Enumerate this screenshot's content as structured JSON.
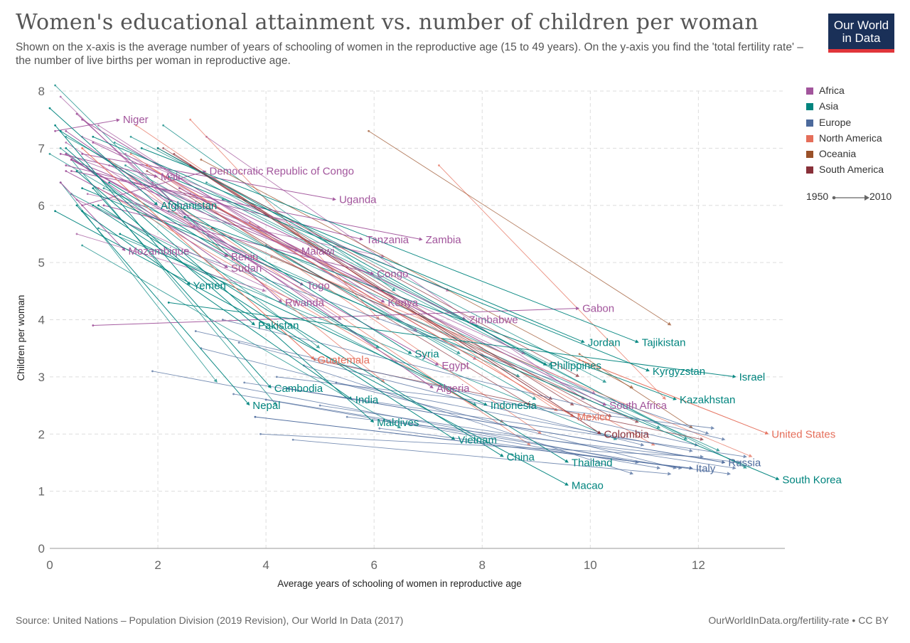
{
  "header": {
    "title": "Women's educational attainment vs. number of children per woman",
    "subtitle": "Shown on the x-axis is the average number of years of schooling of women in the reproductive age (15 to 49 years). On the y-axis you find the 'total fertility rate' – the number of live births per woman in reproductive age.",
    "logo_line1": "Our World",
    "logo_line2": "in Data"
  },
  "legend": {
    "items": [
      {
        "label": "Africa",
        "color": "#a2559c"
      },
      {
        "label": "Asia",
        "color": "#00847e"
      },
      {
        "label": "Europe",
        "color": "#4c6a9c"
      },
      {
        "label": "North America",
        "color": "#e56e5a"
      },
      {
        "label": "Oceania",
        "color": "#9a5129"
      },
      {
        "label": "South America",
        "color": "#883039"
      }
    ],
    "timeline_start": "1950",
    "timeline_end": "2010"
  },
  "footer": {
    "source": "Source: United Nations – Population Division (2019 Revision), Our World In Data (2017)",
    "url": "OurWorldInData.org/fertility-rate • CC BY"
  },
  "chart_data": {
    "type": "scatter",
    "title": "Women's educational attainment vs. number of children per woman",
    "xlabel": "Average years of schooling of women in reproductive age",
    "ylabel": "Children per woman",
    "xlim": [
      0,
      13.6
    ],
    "ylim": [
      0,
      8
    ],
    "xticks": [
      "0",
      "2",
      "4",
      "6",
      "8",
      "10",
      "12"
    ],
    "yticks": [
      "0",
      "1",
      "2",
      "3",
      "4",
      "5",
      "6",
      "7",
      "8"
    ],
    "grid": true,
    "legend_position": "right",
    "series": [
      {
        "name": "Niger",
        "region": "Africa",
        "x0": 0.1,
        "y0": 7.3,
        "x1": 1.3,
        "y1": 7.5
      },
      {
        "name": "Mali",
        "region": "Africa",
        "x0": 0.2,
        "y0": 6.9,
        "x1": 2.0,
        "y1": 6.5
      },
      {
        "name": "Democratic Republic of Congo",
        "region": "Africa",
        "x0": 0.6,
        "y0": 6.0,
        "x1": 2.9,
        "y1": 6.6
      },
      {
        "name": "Uganda",
        "region": "Africa",
        "x0": 0.6,
        "y0": 6.9,
        "x1": 5.3,
        "y1": 6.1
      },
      {
        "name": "Tanzania",
        "region": "Africa",
        "x0": 0.3,
        "y0": 6.7,
        "x1": 5.8,
        "y1": 5.4
      },
      {
        "name": "Zambia",
        "region": "Africa",
        "x0": 0.4,
        "y0": 6.6,
        "x1": 6.9,
        "y1": 5.4
      },
      {
        "name": "Mozambique",
        "region": "Africa",
        "x0": 0.2,
        "y0": 6.4,
        "x1": 1.4,
        "y1": 5.2
      },
      {
        "name": "Benin",
        "region": "Africa",
        "x0": 0.3,
        "y0": 6.6,
        "x1": 3.3,
        "y1": 5.1
      },
      {
        "name": "Malawi",
        "region": "Africa",
        "x0": 0.4,
        "y0": 6.8,
        "x1": 4.6,
        "y1": 5.2
      },
      {
        "name": "Sudan",
        "region": "Africa",
        "x0": 0.3,
        "y0": 6.9,
        "x1": 3.3,
        "y1": 4.9
      },
      {
        "name": "Togo",
        "region": "Africa",
        "x0": 0.4,
        "y0": 6.8,
        "x1": 4.7,
        "y1": 4.6
      },
      {
        "name": "Rwanda",
        "region": "Africa",
        "x0": 0.5,
        "y0": 7.6,
        "x1": 4.3,
        "y1": 4.3
      },
      {
        "name": "Congo",
        "region": "Africa",
        "x0": 1.0,
        "y0": 6.0,
        "x1": 6.0,
        "y1": 4.8
      },
      {
        "name": "Kenya",
        "region": "Africa",
        "x0": 0.6,
        "y0": 7.5,
        "x1": 6.2,
        "y1": 4.3
      },
      {
        "name": "Gabon",
        "region": "Africa",
        "x0": 0.8,
        "y0": 3.9,
        "x1": 9.8,
        "y1": 4.2
      },
      {
        "name": "Zimbabwe",
        "region": "Africa",
        "x0": 0.8,
        "y0": 7.1,
        "x1": 7.7,
        "y1": 4.0
      },
      {
        "name": "Egypt",
        "region": "Africa",
        "x0": 0.4,
        "y0": 6.8,
        "x1": 7.2,
        "y1": 3.2
      },
      {
        "name": "Algeria",
        "region": "Africa",
        "x0": 0.3,
        "y0": 7.3,
        "x1": 7.1,
        "y1": 2.8
      },
      {
        "name": "South Africa",
        "region": "Africa",
        "x0": 2.4,
        "y0": 6.3,
        "x1": 10.3,
        "y1": 2.5
      },
      {
        "name": "Afghanistan",
        "region": "Asia",
        "x0": 0.0,
        "y0": 7.7,
        "x1": 2.0,
        "y1": 6.0
      },
      {
        "name": "Yemen",
        "region": "Asia",
        "x0": 0.1,
        "y0": 7.4,
        "x1": 2.6,
        "y1": 4.6
      },
      {
        "name": "Pakistan",
        "region": "Asia",
        "x0": 0.5,
        "y0": 6.6,
        "x1": 3.8,
        "y1": 3.9
      },
      {
        "name": "Cambodia",
        "region": "Asia",
        "x0": 0.8,
        "y0": 6.3,
        "x1": 4.1,
        "y1": 2.8
      },
      {
        "name": "Nepal",
        "region": "Asia",
        "x0": 0.5,
        "y0": 6.0,
        "x1": 3.7,
        "y1": 2.5
      },
      {
        "name": "India",
        "region": "Asia",
        "x0": 0.6,
        "y0": 5.9,
        "x1": 5.6,
        "y1": 2.6
      },
      {
        "name": "Maldives",
        "region": "Asia",
        "x0": 0.3,
        "y0": 7.0,
        "x1": 6.0,
        "y1": 2.2
      },
      {
        "name": "Syria",
        "region": "Asia",
        "x0": 0.2,
        "y0": 7.3,
        "x1": 6.7,
        "y1": 3.4
      },
      {
        "name": "Vietnam",
        "region": "Asia",
        "x0": 0.8,
        "y0": 6.0,
        "x1": 7.5,
        "y1": 1.9
      },
      {
        "name": "Indonesia",
        "region": "Asia",
        "x0": 1.3,
        "y0": 5.5,
        "x1": 8.1,
        "y1": 2.5
      },
      {
        "name": "China",
        "region": "Asia",
        "x0": 0.9,
        "y0": 6.0,
        "x1": 8.4,
        "y1": 1.6
      },
      {
        "name": "Philippines",
        "region": "Asia",
        "x0": 2.0,
        "y0": 7.0,
        "x1": 9.2,
        "y1": 3.2
      },
      {
        "name": "Jordan",
        "region": "Asia",
        "x0": 0.8,
        "y0": 7.2,
        "x1": 9.9,
        "y1": 3.6
      },
      {
        "name": "Tajikistan",
        "region": "Asia",
        "x0": 1.7,
        "y0": 7.0,
        "x1": 10.9,
        "y1": 3.6
      },
      {
        "name": "Kyrgyzstan",
        "region": "Asia",
        "x0": 2.2,
        "y0": 6.5,
        "x1": 11.1,
        "y1": 3.1
      },
      {
        "name": "Kazakhstan",
        "region": "Asia",
        "x0": 2.5,
        "y0": 5.8,
        "x1": 11.6,
        "y1": 2.6
      },
      {
        "name": "Israel",
        "region": "Asia",
        "x0": 2.2,
        "y0": 4.3,
        "x1": 12.7,
        "y1": 3.0
      },
      {
        "name": "Thailand",
        "region": "Asia",
        "x0": 1.1,
        "y0": 6.4,
        "x1": 9.6,
        "y1": 1.5
      },
      {
        "name": "Macao",
        "region": "Asia",
        "x0": 0.1,
        "y0": 5.9,
        "x1": 9.6,
        "y1": 1.1
      },
      {
        "name": "South Korea",
        "region": "Asia",
        "x0": 0.6,
        "y0": 6.3,
        "x1": 13.5,
        "y1": 1.2
      },
      {
        "name": "Guatemala",
        "region": "North America",
        "x0": 0.6,
        "y0": 7.0,
        "x1": 4.9,
        "y1": 3.3
      },
      {
        "name": "Mexico",
        "region": "North America",
        "x0": 1.8,
        "y0": 6.7,
        "x1": 9.7,
        "y1": 2.3
      },
      {
        "name": "United States",
        "region": "North America",
        "x0": 9.8,
        "y0": 3.3,
        "x1": 13.3,
        "y1": 2.0
      },
      {
        "name": "Colombia",
        "region": "South America",
        "x0": 2.6,
        "y0": 6.7,
        "x1": 10.2,
        "y1": 2.0
      },
      {
        "name": "Russia",
        "region": "Europe",
        "x0": 4.4,
        "y0": 2.8,
        "x1": 12.5,
        "y1": 1.5
      },
      {
        "name": "Italy",
        "region": "Europe",
        "x0": 3.8,
        "y0": 2.3,
        "x1": 11.9,
        "y1": 1.4
      }
    ],
    "background_lines": [
      {
        "region": "Asia",
        "x0": 0.1,
        "y0": 8.1,
        "x1": 3.3,
        "y1": 5.1
      },
      {
        "region": "Asia",
        "x0": 2.1,
        "y0": 7.4,
        "x1": 6.4,
        "y1": 4.5
      },
      {
        "region": "Asia",
        "x0": 0.4,
        "y0": 6.8,
        "x1": 4.2,
        "y1": 2.5
      },
      {
        "region": "Asia",
        "x0": 0.2,
        "y0": 7.0,
        "x1": 5.0,
        "y1": 3.5
      },
      {
        "region": "Asia",
        "x0": 0.4,
        "y0": 6.2,
        "x1": 7.9,
        "y1": 2.5
      },
      {
        "region": "Asia",
        "x0": 1.4,
        "y0": 6.7,
        "x1": 9.0,
        "y1": 2.6
      },
      {
        "region": "Asia",
        "x0": 2.2,
        "y0": 5.9,
        "x1": 11.3,
        "y1": 2.1
      },
      {
        "region": "Asia",
        "x0": 1.2,
        "y0": 7.1,
        "x1": 9.3,
        "y1": 3.2
      },
      {
        "region": "Asia",
        "x0": 0.6,
        "y0": 5.3,
        "x1": 6.5,
        "y1": 2.1
      },
      {
        "region": "Asia",
        "x0": 3.2,
        "y0": 6.1,
        "x1": 12.9,
        "y1": 1.4
      },
      {
        "region": "Asia",
        "x0": 0.9,
        "y0": 5.6,
        "x1": 10.5,
        "y1": 1.9
      },
      {
        "region": "Asia",
        "x0": 2.9,
        "y0": 6.4,
        "x1": 11.8,
        "y1": 1.9
      },
      {
        "region": "Asia",
        "x0": 0.3,
        "y0": 7.2,
        "x1": 7.6,
        "y1": 3.4
      },
      {
        "region": "Asia",
        "x0": 1.0,
        "y0": 6.3,
        "x1": 8.7,
        "y1": 3.0
      },
      {
        "region": "Asia",
        "x0": 0.2,
        "y0": 6.4,
        "x1": 3.1,
        "y1": 2.9
      },
      {
        "region": "Asia",
        "x0": 4.0,
        "y0": 5.3,
        "x1": 12.4,
        "y1": 1.7
      },
      {
        "region": "Asia",
        "x0": 1.5,
        "y0": 7.2,
        "x1": 10.3,
        "y1": 2.9
      },
      {
        "region": "Asia",
        "x0": 0.0,
        "y0": 6.9,
        "x1": 6.1,
        "y1": 3.5
      },
      {
        "region": "Africa",
        "x0": 0.2,
        "y0": 7.9,
        "x1": 2.7,
        "y1": 5.6
      },
      {
        "region": "Africa",
        "x0": 0.9,
        "y0": 7.4,
        "x1": 6.8,
        "y1": 3.8
      },
      {
        "region": "Africa",
        "x0": 0.5,
        "y0": 6.1,
        "x1": 4.6,
        "y1": 4.3
      },
      {
        "region": "Africa",
        "x0": 0.6,
        "y0": 7.2,
        "x1": 7.4,
        "y1": 4.5
      },
      {
        "region": "Africa",
        "x0": 0.3,
        "y0": 6.9,
        "x1": 3.9,
        "y1": 5.6
      },
      {
        "region": "Africa",
        "x0": 1.1,
        "y0": 6.7,
        "x1": 8.8,
        "y1": 3.4
      },
      {
        "region": "Africa",
        "x0": 1.9,
        "y0": 6.4,
        "x1": 10.1,
        "y1": 2.7
      },
      {
        "region": "Africa",
        "x0": 0.7,
        "y0": 6.2,
        "x1": 6.2,
        "y1": 5.1
      },
      {
        "region": "Africa",
        "x0": 0.3,
        "y0": 7.1,
        "x1": 5.4,
        "y1": 4.0
      },
      {
        "region": "Africa",
        "x0": 2.9,
        "y0": 7.2,
        "x1": 9.9,
        "y1": 2.6
      },
      {
        "region": "Africa",
        "x0": 0.5,
        "y0": 5.5,
        "x1": 4.0,
        "y1": 4.5
      },
      {
        "region": "Africa",
        "x0": 1.4,
        "y0": 6.9,
        "x1": 7.9,
        "y1": 3.3
      },
      {
        "region": "North America",
        "x0": 2.6,
        "y0": 7.5,
        "x1": 6.1,
        "y1": 4.0
      },
      {
        "region": "North America",
        "x0": 1.1,
        "y0": 6.8,
        "x1": 6.2,
        "y1": 2.9
      },
      {
        "region": "North America",
        "x0": 1.6,
        "y0": 7.4,
        "x1": 9.4,
        "y1": 2.4
      },
      {
        "region": "North America",
        "x0": 0.9,
        "y0": 6.3,
        "x1": 8.4,
        "y1": 2.2
      },
      {
        "region": "North America",
        "x0": 3.7,
        "y0": 5.7,
        "x1": 11.2,
        "y1": 1.8
      },
      {
        "region": "North America",
        "x0": 7.2,
        "y0": 6.7,
        "x1": 11.4,
        "y1": 2.6
      },
      {
        "region": "North America",
        "x0": 2.2,
        "y0": 6.1,
        "x1": 8.9,
        "y1": 1.8
      },
      {
        "region": "North America",
        "x0": 4.1,
        "y0": 5.1,
        "x1": 13.0,
        "y1": 1.6
      },
      {
        "region": "North America",
        "x0": 1.5,
        "y0": 6.9,
        "x1": 9.1,
        "y1": 2.0
      },
      {
        "region": "South America",
        "x0": 2.3,
        "y0": 6.9,
        "x1": 9.3,
        "y1": 2.6
      },
      {
        "region": "South America",
        "x0": 1.8,
        "y0": 6.6,
        "x1": 8.9,
        "y1": 2.5
      },
      {
        "region": "South America",
        "x0": 3.0,
        "y0": 5.6,
        "x1": 10.9,
        "y1": 2.2
      },
      {
        "region": "South America",
        "x0": 2.1,
        "y0": 7.0,
        "x1": 9.7,
        "y1": 2.5
      },
      {
        "region": "South America",
        "x0": 4.9,
        "y0": 3.3,
        "x1": 12.1,
        "y1": 1.9
      },
      {
        "region": "South America",
        "x0": 2.6,
        "y0": 6.2,
        "x1": 10.4,
        "y1": 2.3
      },
      {
        "region": "South America",
        "x0": 2.0,
        "y0": 7.0,
        "x1": 9.8,
        "y1": 3.0
      },
      {
        "region": "Oceania",
        "x0": 5.9,
        "y0": 7.3,
        "x1": 11.5,
        "y1": 3.9
      },
      {
        "region": "Oceania",
        "x0": 9.8,
        "y0": 3.4,
        "x1": 11.9,
        "y1": 2.1
      },
      {
        "region": "Oceania",
        "x0": 2.8,
        "y0": 6.8,
        "x1": 10.8,
        "y1": 2.8
      },
      {
        "region": "Europe",
        "x0": 1.9,
        "y0": 3.1,
        "x1": 10.9,
        "y1": 1.5
      },
      {
        "region": "Europe",
        "x0": 2.8,
        "y0": 3.5,
        "x1": 11.6,
        "y1": 1.4
      },
      {
        "region": "Europe",
        "x0": 3.9,
        "y0": 2.0,
        "x1": 12.1,
        "y1": 1.6
      },
      {
        "region": "Europe",
        "x0": 4.5,
        "y0": 1.9,
        "x1": 11.5,
        "y1": 1.3
      },
      {
        "region": "Europe",
        "x0": 3.6,
        "y0": 2.9,
        "x1": 12.9,
        "y1": 1.6
      },
      {
        "region": "Europe",
        "x0": 2.7,
        "y0": 3.8,
        "x1": 12.0,
        "y1": 1.8
      },
      {
        "region": "Europe",
        "x0": 5.0,
        "y0": 2.5,
        "x1": 12.7,
        "y1": 1.4
      },
      {
        "region": "Europe",
        "x0": 4.2,
        "y0": 3.0,
        "x1": 12.3,
        "y1": 2.1
      },
      {
        "region": "Europe",
        "x0": 3.4,
        "y0": 2.7,
        "x1": 11.7,
        "y1": 1.4
      },
      {
        "region": "Europe",
        "x0": 5.5,
        "y0": 2.3,
        "x1": 12.8,
        "y1": 1.5
      },
      {
        "region": "Europe",
        "x0": 4.7,
        "y0": 3.2,
        "x1": 10.8,
        "y1": 1.3
      },
      {
        "region": "Europe",
        "x0": 5.3,
        "y0": 2.9,
        "x1": 11.9,
        "y1": 1.7
      },
      {
        "region": "Europe",
        "x0": 3.2,
        "y0": 4.0,
        "x1": 12.5,
        "y1": 1.9
      },
      {
        "region": "Europe",
        "x0": 2.5,
        "y0": 5.2,
        "x1": 12.2,
        "y1": 2.0
      },
      {
        "region": "Europe",
        "x0": 4.0,
        "y0": 2.6,
        "x1": 11.3,
        "y1": 1.4
      },
      {
        "region": "Europe",
        "x0": 6.1,
        "y0": 2.1,
        "x1": 12.6,
        "y1": 1.3
      },
      {
        "region": "Europe",
        "x0": 3.5,
        "y0": 3.6,
        "x1": 11.0,
        "y1": 1.8
      }
    ]
  }
}
